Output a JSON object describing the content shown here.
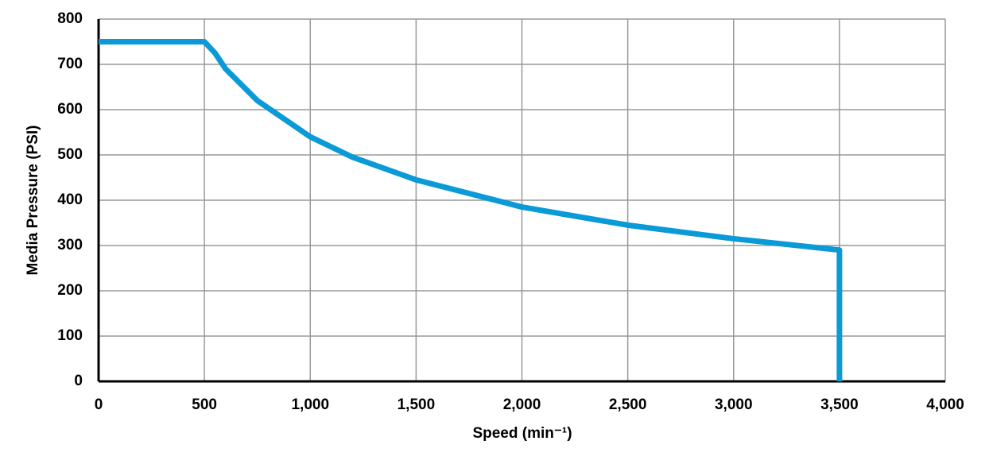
{
  "chart_data": {
    "type": "line",
    "xlabel": "Speed (min⁻¹)",
    "ylabel": "Media Pressure (PSI)",
    "x": [
      0,
      500,
      550,
      600,
      750,
      1000,
      1200,
      1500,
      2000,
      2500,
      3000,
      3500,
      3500
    ],
    "series": [
      {
        "color": "#0a9ad8",
        "values": [
          750,
          750,
          725,
          690,
          620,
          540,
          495,
          445,
          385,
          345,
          315,
          290,
          0
        ]
      }
    ],
    "xlim": [
      0,
      4000
    ],
    "xticks": [
      0,
      500,
      {
        "value": 1000,
        "label": "1,000"
      },
      {
        "value": 1500,
        "label": "1,500"
      },
      {
        "value": 2000,
        "label": "2,000"
      },
      {
        "value": 2500,
        "label": "2,500"
      },
      {
        "value": 3000,
        "label": "3,000"
      },
      {
        "value": 3500,
        "label": "3,500"
      },
      {
        "value": 4000,
        "label": "4,000"
      }
    ],
    "ylim": [
      0,
      800
    ],
    "yticks": [
      0,
      100,
      200,
      300,
      400,
      500,
      600,
      700,
      800
    ],
    "grid": true
  }
}
